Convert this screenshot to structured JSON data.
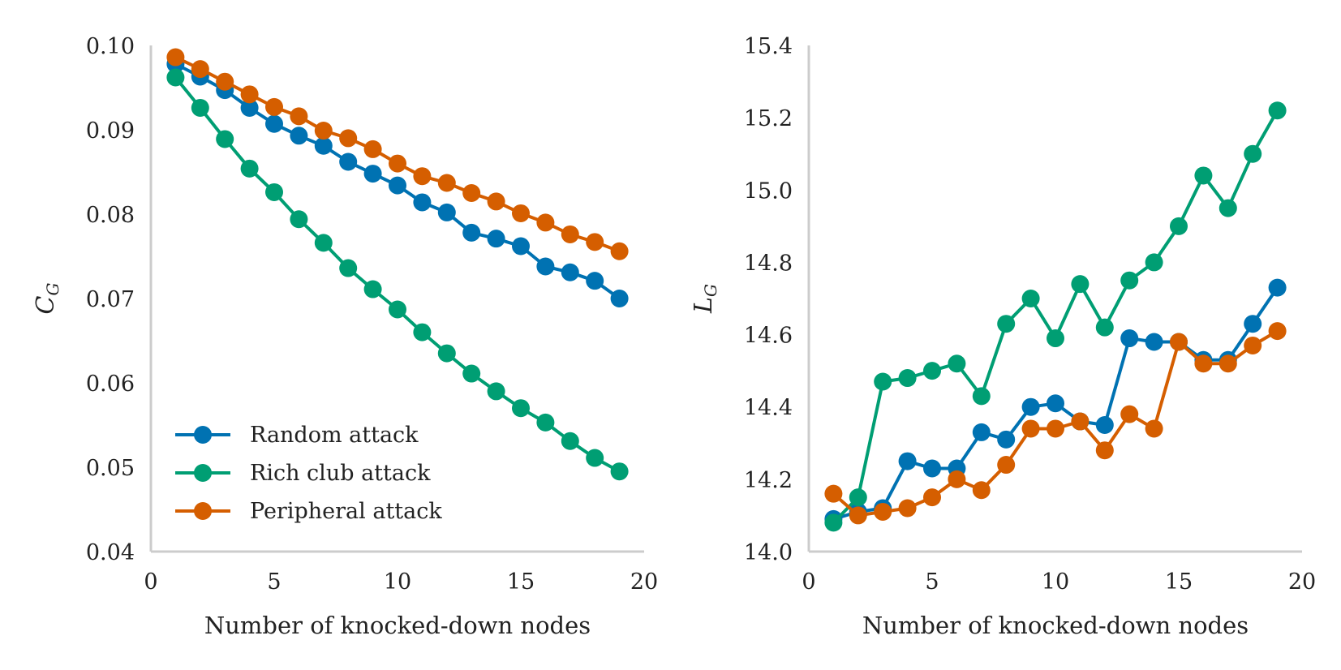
{
  "chart_data": [
    {
      "type": "line",
      "xlabel": "Number of knocked-down nodes",
      "ylabel": "C",
      "ylabel_subscript": "G",
      "xlim": [
        0,
        20
      ],
      "ylim": [
        0.04,
        0.1
      ],
      "xticks": [
        "0",
        "5",
        "10",
        "15",
        "20"
      ],
      "yticks": [
        "0.04",
        "0.05",
        "0.06",
        "0.07",
        "0.08",
        "0.09",
        "0.10"
      ],
      "xtick_values": [
        0,
        5,
        10,
        15,
        20
      ],
      "ytick_values": [
        0.04,
        0.05,
        0.06,
        0.07,
        0.08,
        0.09,
        0.1
      ],
      "grid": false,
      "legend": "bottom-left",
      "x": [
        1,
        2,
        3,
        4,
        5,
        6,
        7,
        8,
        9,
        10,
        11,
        12,
        13,
        14,
        15,
        16,
        17,
        18,
        19
      ],
      "series": [
        {
          "name": "Random attack",
          "color": "#0072B2",
          "values": [
            0.0978,
            0.0963,
            0.0947,
            0.0926,
            0.0907,
            0.0893,
            0.0881,
            0.0862,
            0.0848,
            0.0834,
            0.0814,
            0.0802,
            0.0778,
            0.0771,
            0.0762,
            0.0738,
            0.0731,
            0.0721,
            0.07
          ]
        },
        {
          "name": "Rich club attack",
          "color": "#009E73",
          "values": [
            0.0962,
            0.0926,
            0.0889,
            0.0854,
            0.0826,
            0.0794,
            0.0766,
            0.0736,
            0.0711,
            0.0687,
            0.066,
            0.0635,
            0.0611,
            0.059,
            0.057,
            0.0553,
            0.0531,
            0.0511,
            0.0495
          ]
        },
        {
          "name": "Peripheral attack",
          "color": "#D55E00",
          "values": [
            0.0986,
            0.0972,
            0.0957,
            0.0942,
            0.0927,
            0.0916,
            0.0899,
            0.089,
            0.0877,
            0.086,
            0.0845,
            0.0837,
            0.0825,
            0.0815,
            0.0801,
            0.079,
            0.0776,
            0.0767,
            0.0756
          ]
        }
      ]
    },
    {
      "type": "line",
      "xlabel": "Number of knocked-down nodes",
      "ylabel": "L",
      "ylabel_subscript": "G",
      "xlim": [
        0,
        20
      ],
      "ylim": [
        14.0,
        15.4
      ],
      "xticks": [
        "0",
        "5",
        "10",
        "15",
        "20"
      ],
      "yticks": [
        "14.0",
        "14.2",
        "14.4",
        "14.6",
        "14.8",
        "15.0",
        "15.2",
        "15.4"
      ],
      "xtick_values": [
        0,
        5,
        10,
        15,
        20
      ],
      "ytick_values": [
        14.0,
        14.2,
        14.4,
        14.6,
        14.8,
        15.0,
        15.2,
        15.4
      ],
      "grid": false,
      "x": [
        1,
        2,
        3,
        4,
        5,
        6,
        7,
        8,
        9,
        10,
        11,
        12,
        13,
        14,
        15,
        16,
        17,
        18,
        19
      ],
      "series": [
        {
          "name": "Random attack",
          "color": "#0072B2",
          "values": [
            14.09,
            14.11,
            14.12,
            14.25,
            14.23,
            14.23,
            14.33,
            14.31,
            14.4,
            14.41,
            14.36,
            14.35,
            14.59,
            14.58,
            14.58,
            14.53,
            14.53,
            14.63,
            14.73
          ]
        },
        {
          "name": "Rich club attack",
          "color": "#009E73",
          "values": [
            14.08,
            14.15,
            14.47,
            14.48,
            14.5,
            14.52,
            14.43,
            14.63,
            14.7,
            14.59,
            14.74,
            14.62,
            14.75,
            14.8,
            14.9,
            15.04,
            14.95,
            15.1,
            15.22
          ]
        },
        {
          "name": "Peripheral attack",
          "color": "#D55E00",
          "values": [
            14.16,
            14.1,
            14.11,
            14.12,
            14.15,
            14.2,
            14.17,
            14.24,
            14.34,
            14.34,
            14.36,
            14.28,
            14.38,
            14.34,
            14.58,
            14.52,
            14.52,
            14.57,
            14.61
          ]
        }
      ]
    }
  ]
}
